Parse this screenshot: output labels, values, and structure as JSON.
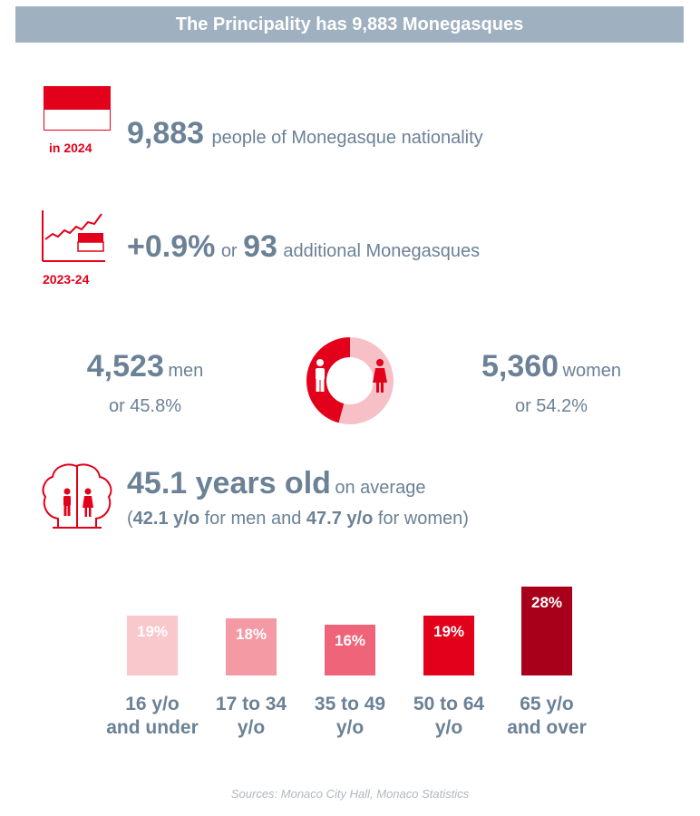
{
  "header": {
    "title": "The Principality has 9,883 Monegasques"
  },
  "nationality": {
    "icon": "monaco-flag-icon",
    "year_label": "in 2024",
    "value": "9,883",
    "text": "people of Monegasque nationality"
  },
  "growth": {
    "icon": "growth-chart-flag-icon",
    "period_label": "2023-24",
    "percent": "+0.9%",
    "or": "or",
    "value": "93",
    "text": "additional Monegasques"
  },
  "gender": {
    "men_value": "4,523",
    "men_label": "men",
    "men_pct": "or 45.8%",
    "women_value": "5,360",
    "women_label": "women",
    "women_pct": "or 54.2%",
    "men_share": 45.8,
    "women_share": 54.2,
    "men_color": "#e2001a",
    "women_color": "#f6c0c6"
  },
  "age": {
    "icon": "family-tree-icon",
    "headline": "45.1 years old",
    "headline_suffix": "on average",
    "detail_open": "(",
    "men_age": "42.1 y/o",
    "detail_mid": "for men and",
    "women_age": "47.7 y/o",
    "detail_end": "for women)"
  },
  "chart_data": {
    "type": "bar",
    "categories": [
      [
        "16 y/o",
        "and under"
      ],
      [
        "17 to 34",
        "y/o"
      ],
      [
        "35 to 49",
        "y/o"
      ],
      [
        "50 to 64",
        "y/o"
      ],
      [
        "65 y/o",
        "and over"
      ]
    ],
    "values": [
      19,
      18,
      16,
      19,
      28
    ],
    "labels": [
      "19%",
      "18%",
      "16%",
      "19%",
      "28%"
    ],
    "colors": [
      "#f8c8cd",
      "#f49aa5",
      "#ef6478",
      "#e2001a",
      "#a8001a"
    ],
    "ylim": [
      0,
      28
    ]
  },
  "source": "Sources: Monaco City Hall, Monaco Statistics"
}
